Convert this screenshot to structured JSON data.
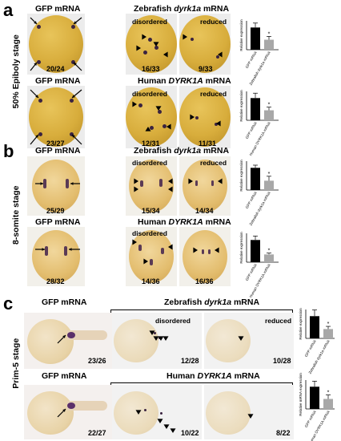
{
  "panels": {
    "a": {
      "letter": "a",
      "stage": "50% Epiboly stage",
      "row1": {
        "control": "GFP mRNA",
        "species": "Zebrafish",
        "gene": "dyrk1a",
        "suffix": "mRNA",
        "sub_disordered": "disordered",
        "sub_reduced": "reduced",
        "counts": [
          "20/24",
          "16/33",
          "9/33"
        ]
      },
      "row2": {
        "control": "GFP mRNA",
        "species": "Human",
        "gene": "DYRK1A",
        "suffix": "mRNA",
        "sub_disordered": "disordered",
        "sub_reduced": "reduced",
        "counts": [
          "23/27",
          "12/31",
          "11/31"
        ]
      }
    },
    "b": {
      "letter": "b",
      "stage": "8-somite stage",
      "row1": {
        "control": "GFP mRNA",
        "species": "Zebrafish",
        "gene": "dyrk1a",
        "suffix": "mRNA",
        "sub_disordered": "disordered",
        "sub_reduced": "reduced",
        "counts": [
          "25/29",
          "15/34",
          "14/34"
        ]
      },
      "row2": {
        "control": "GFP mRNA",
        "species": "Human",
        "gene": "DYRK1A",
        "suffix": "mRNA",
        "sub_disordered": "disordered",
        "sub_reduced": "reduced",
        "counts": [
          "28/32",
          "14/36",
          "16/36"
        ]
      }
    },
    "c": {
      "letter": "c",
      "stage": "Prim-5 stage",
      "row1": {
        "control": "GFP mRNA",
        "species": "Zebrafish",
        "gene": "dyrk1a",
        "suffix": "mRNA",
        "sub_disordered": "disordered",
        "sub_reduced": "reduced",
        "counts": [
          "23/26",
          "12/28",
          "10/28"
        ]
      },
      "row2": {
        "control": "GFP mRNA",
        "species": "Human",
        "gene": "DYRK1A",
        "suffix": "mRNA",
        "sub_disordered": "disordered",
        "sub_reduced": "reduced",
        "counts": [
          "22/27",
          "10/22",
          "8/22"
        ]
      }
    }
  },
  "chart_data": [
    {
      "type": "bar",
      "panel": "a-1",
      "ylabel": "Relative expression",
      "categories": [
        "GFP mRNA",
        "Zebrafish dyrk1a mRNA"
      ],
      "values": [
        1.0,
        0.45
      ],
      "errors": [
        0.2,
        0.15
      ],
      "significance": [
        "",
        "*"
      ]
    },
    {
      "type": "bar",
      "panel": "a-2",
      "ylabel": "Relative expression",
      "categories": [
        "GFP mRNA",
        "Human DYRK1A mRNA"
      ],
      "values": [
        1.0,
        0.45
      ],
      "errors": [
        0.22,
        0.14
      ],
      "significance": [
        "",
        "*"
      ]
    },
    {
      "type": "bar",
      "panel": "b-1",
      "ylabel": "Relative expression",
      "categories": [
        "GFP mRNA",
        "Zebrafish dyrk1a mRNA"
      ],
      "values": [
        1.0,
        0.42
      ],
      "errors": [
        0.12,
        0.2
      ],
      "significance": [
        "",
        "*"
      ]
    },
    {
      "type": "bar",
      "panel": "b-2",
      "ylabel": "Relative expression",
      "categories": [
        "GFP mRNA",
        "Human DYRK1A mRNA"
      ],
      "values": [
        1.0,
        0.35
      ],
      "errors": [
        0.18,
        0.06
      ],
      "significance": [
        "",
        "*"
      ]
    },
    {
      "type": "bar",
      "panel": "c-1",
      "ylabel": "Relative expression",
      "categories": [
        "GFP mRNA",
        "Zebrafish dyrk1a mRNA"
      ],
      "values": [
        1.0,
        0.42
      ],
      "errors": [
        0.28,
        0.12
      ],
      "significance": [
        "",
        "*"
      ]
    },
    {
      "type": "bar",
      "panel": "c-2",
      "ylabel": "Relative mRNA expression",
      "categories": [
        "GFP mRNA",
        "Human DYRK1A mRNA"
      ],
      "values": [
        1.0,
        0.45
      ],
      "errors": [
        0.25,
        0.18
      ],
      "significance": [
        "",
        "*"
      ]
    }
  ],
  "colors": {
    "bar_control": "#000000",
    "bar_treated": "#a8a8a8",
    "stain": "#3a2340"
  }
}
